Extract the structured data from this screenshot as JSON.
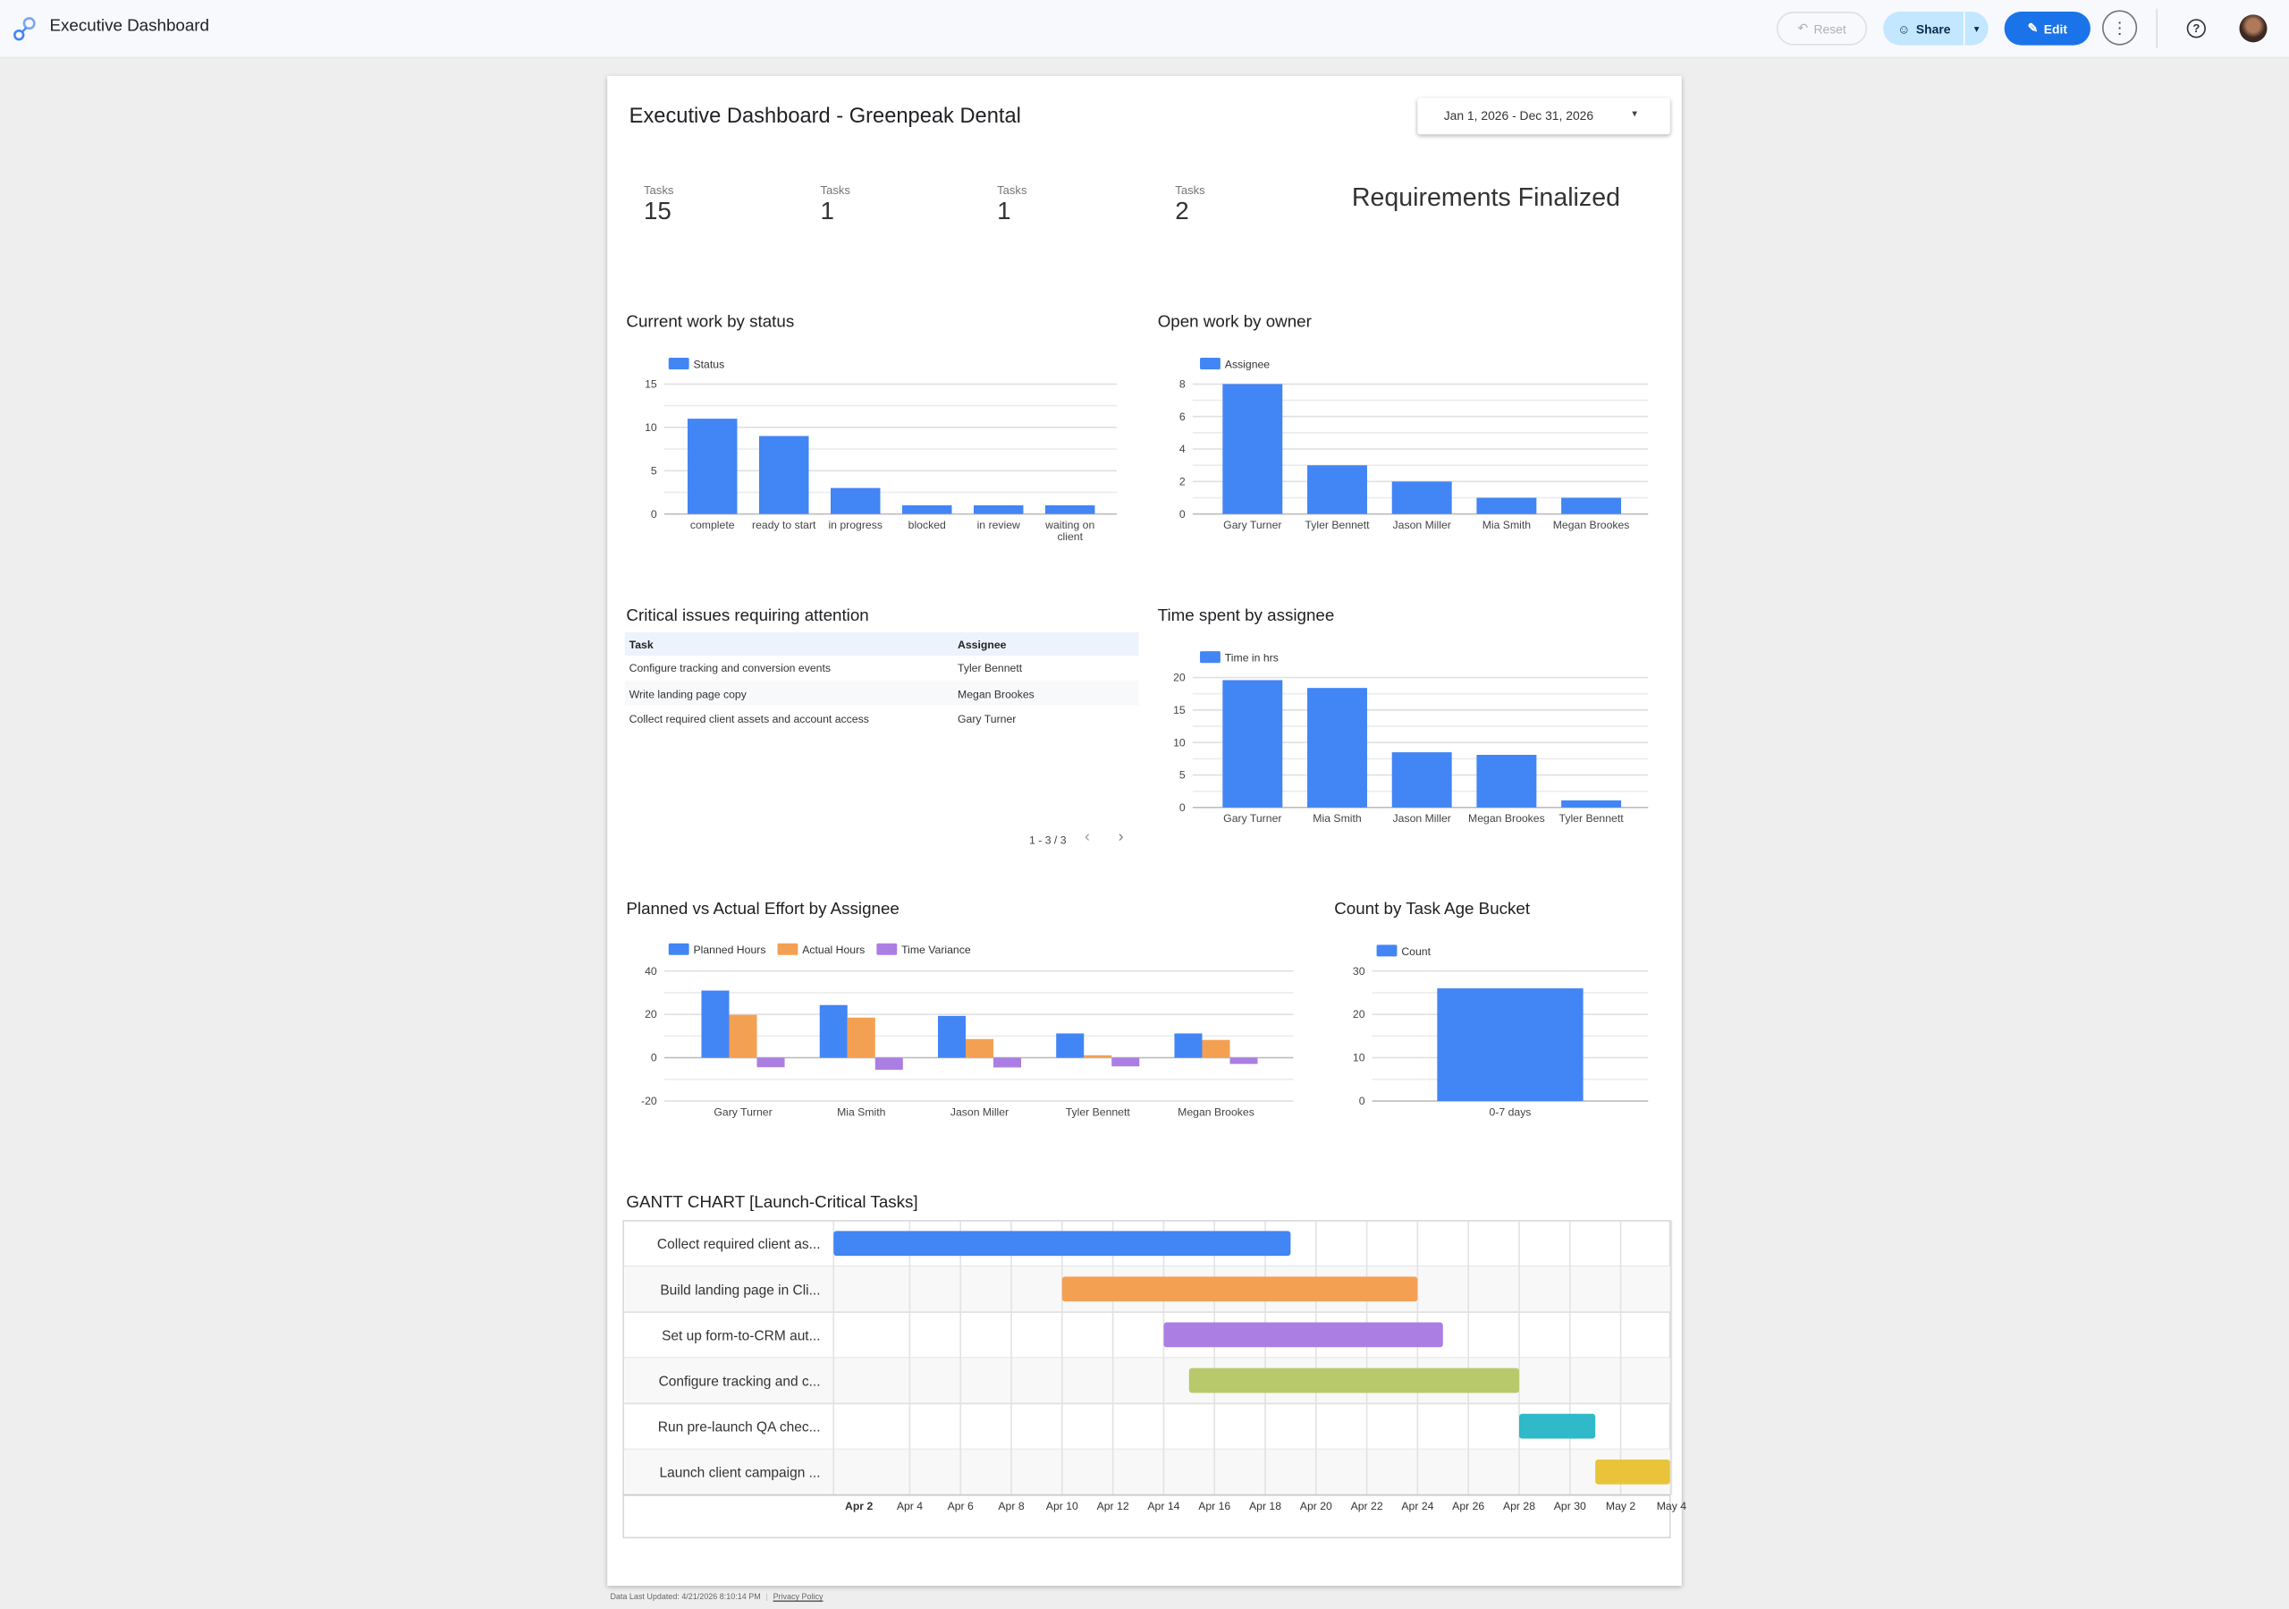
{
  "header": {
    "app_title": "Executive Dashboard",
    "reset_label": "Reset",
    "share_label": "Share",
    "edit_label": "Edit"
  },
  "report": {
    "title": "Executive Dashboard - Greenpeak Dental",
    "date_range": "Jan 1, 2026 - Dec 31, 2026",
    "kpis": [
      {
        "label": "Tasks",
        "value": "15"
      },
      {
        "label": "Tasks",
        "value": "1"
      },
      {
        "label": "Tasks",
        "value": "1"
      },
      {
        "label": "Tasks",
        "value": "2"
      }
    ],
    "milestone": "Requirements Finalized"
  },
  "critical_table": {
    "title": "Critical issues requiring attention",
    "columns": [
      "Task",
      "Assignee"
    ],
    "rows": [
      [
        "Configure tracking and conversion events",
        "Tyler Bennett"
      ],
      [
        "Write landing page copy",
        "Megan Brookes"
      ],
      [
        "Collect required client assets and account access",
        "Gary Turner"
      ]
    ],
    "pagination": "1 - 3 / 3"
  },
  "chart_data": [
    {
      "id": "status",
      "type": "bar",
      "title": "Current work by status",
      "categories": [
        "complete",
        "ready to start",
        "in progress",
        "blocked",
        "in review",
        "waiting on client"
      ],
      "series": [
        {
          "name": "Status",
          "values": [
            11,
            9,
            3,
            1,
            1,
            1
          ],
          "color": "#4285f4"
        }
      ],
      "ylim": [
        0,
        15
      ],
      "yticks": [
        0,
        5,
        10,
        15
      ],
      "legend": "top-left",
      "grid": true
    },
    {
      "id": "owner",
      "type": "bar",
      "title": "Open work by owner",
      "categories": [
        "Gary Turner",
        "Tyler Bennett",
        "Jason Miller",
        "Mia Smith",
        "Megan Brookes"
      ],
      "series": [
        {
          "name": "Assignee",
          "values": [
            8,
            3,
            2,
            1,
            1
          ],
          "color": "#4285f4"
        }
      ],
      "ylim": [
        0,
        8
      ],
      "yticks": [
        0,
        2,
        4,
        6,
        8
      ],
      "legend": "top-left",
      "grid": true
    },
    {
      "id": "time",
      "type": "bar",
      "title": "Time spent by assignee",
      "categories": [
        "Gary Turner",
        "Mia Smith",
        "Jason Miller",
        "Megan Brookes",
        "Tyler Bennett"
      ],
      "series": [
        {
          "name": "Time in hrs",
          "values": [
            19.6,
            18.4,
            8.5,
            8.1,
            1.1
          ],
          "color": "#4285f4"
        }
      ],
      "ylim": [
        0,
        20
      ],
      "yticks": [
        0,
        5,
        10,
        15,
        20
      ],
      "legend": "top-left",
      "grid": true
    },
    {
      "id": "effort",
      "type": "bar",
      "title": "Planned vs Actual Effort by Assignee",
      "categories": [
        "Gary Turner",
        "Mia Smith",
        "Jason Miller",
        "Tyler Bennett",
        "Megan Brookes"
      ],
      "series": [
        {
          "name": "Planned Hours",
          "values": [
            31,
            24.3,
            19.3,
            11.2,
            11.2
          ],
          "color": "#4285f4"
        },
        {
          "name": "Actual Hours",
          "values": [
            19.8,
            18.5,
            8.6,
            1.1,
            8.2
          ],
          "color": "#f4a053"
        },
        {
          "name": "Time Variance",
          "values": [
            -4.4,
            -5.6,
            -4.5,
            -4.0,
            -2.9
          ],
          "color": "#ab7ee3"
        }
      ],
      "ylim": [
        -20,
        40
      ],
      "yticks": [
        -20,
        0,
        20,
        40
      ],
      "legend": "top-left",
      "grid": true
    },
    {
      "id": "age",
      "type": "bar",
      "title": "Count by Task Age Bucket",
      "categories": [
        "0-7 days"
      ],
      "series": [
        {
          "name": "Count",
          "values": [
            26
          ],
          "color": "#4285f4"
        }
      ],
      "ylim": [
        0,
        30
      ],
      "yticks": [
        0,
        10,
        20,
        30
      ],
      "legend": "top-left",
      "grid": true
    },
    {
      "id": "gantt",
      "type": "gantt",
      "title": "GANTT CHART [Launch-Critical Tasks]",
      "axis_range": [
        "Apr 1",
        "May 4"
      ],
      "ticks": [
        "Apr 2",
        "Apr 4",
        "Apr 6",
        "Apr 8",
        "Apr 10",
        "Apr 12",
        "Apr 14",
        "Apr 16",
        "Apr 18",
        "Apr 20",
        "Apr 22",
        "Apr 24",
        "Apr 26",
        "Apr 28",
        "Apr 30",
        "May 2",
        "May 4"
      ],
      "tasks": [
        {
          "label": "Collect required client as...",
          "start": "Apr 1",
          "end": "Apr 19",
          "color": "#4285f4"
        },
        {
          "label": "Build landing page in Cli...",
          "start": "Apr 10",
          "end": "Apr 24",
          "color": "#f4a053"
        },
        {
          "label": "Set up form-to-CRM aut...",
          "start": "Apr 14",
          "end": "Apr 25",
          "color": "#ab7ee3"
        },
        {
          "label": "Configure tracking and c...",
          "start": "Apr 15",
          "end": "Apr 28",
          "color": "#b7c96b"
        },
        {
          "label": "Run pre-launch QA chec...",
          "start": "Apr 28",
          "end": "May 1",
          "color": "#2fb9c9"
        },
        {
          "label": "Launch client campaign ...",
          "start": "May 1",
          "end": "May 4",
          "color": "#e9c43b"
        }
      ]
    }
  ],
  "footer": {
    "updated": "Data Last Updated: 4/21/2026 8:10:14 PM",
    "privacy": "Privacy Policy"
  }
}
